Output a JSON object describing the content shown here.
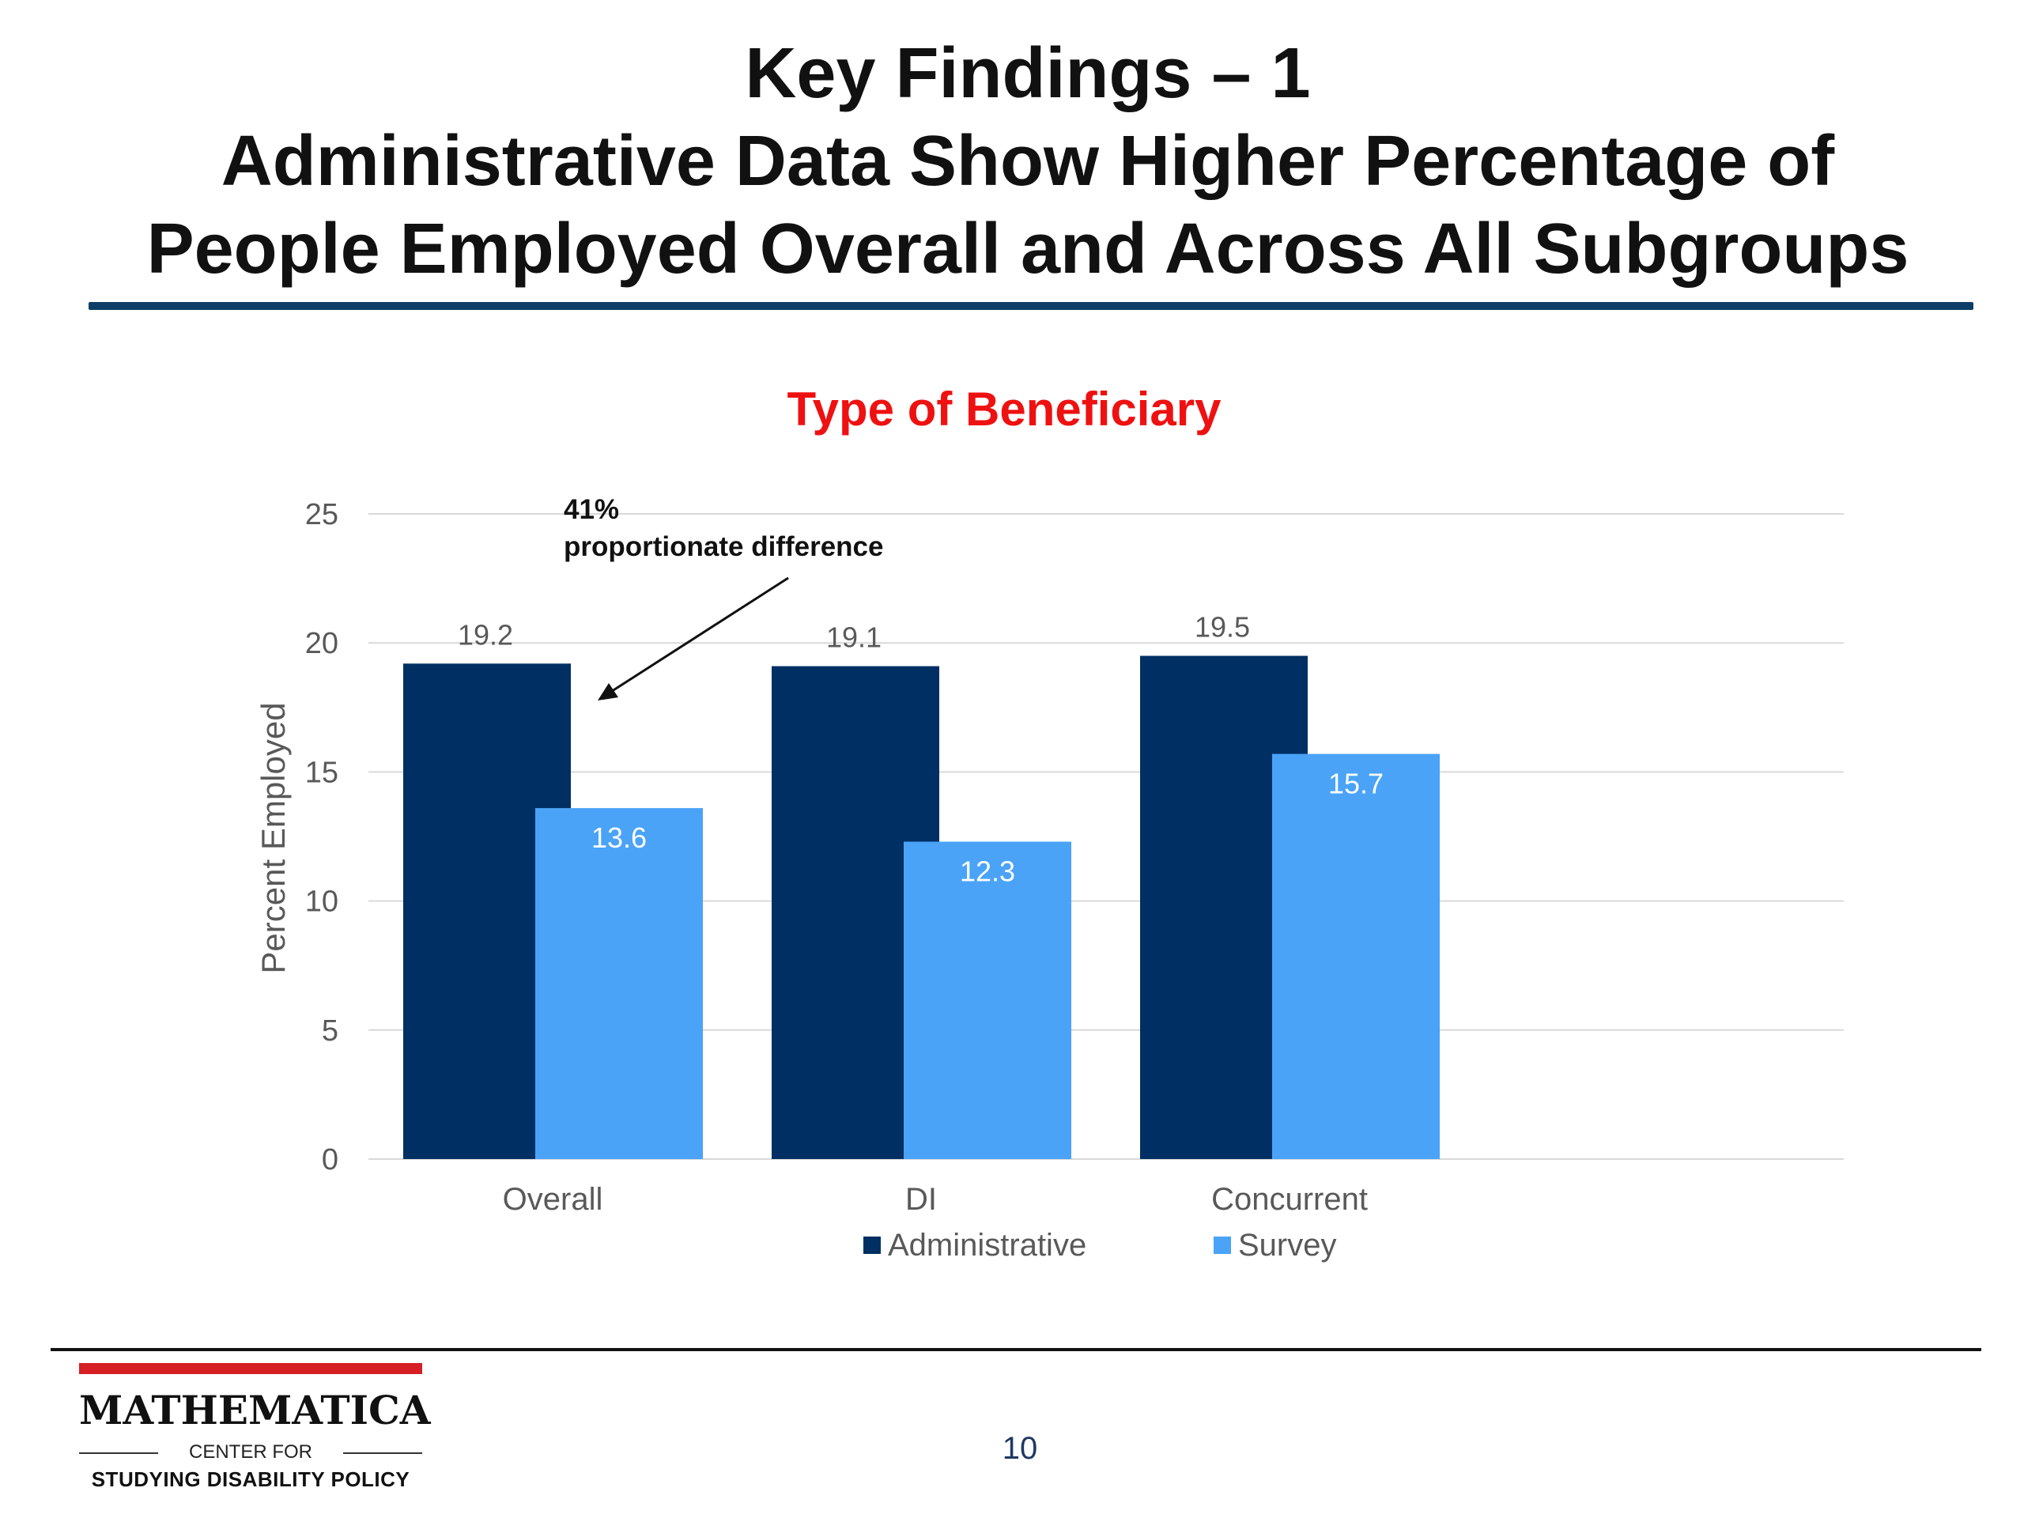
{
  "slide": {
    "title_lines": [
      "Key Findings – 1",
      "Administrative Data Show Higher Percentage of",
      "People Employed Overall and Across All Subgroups"
    ],
    "page_number": "10"
  },
  "logo": {
    "name": "MATHEMATICA",
    "line2": "CENTER FOR",
    "line3": "STUDYING DISABILITY POLICY"
  },
  "chart_data": {
    "type": "bar",
    "title": "Type of Beneficiary",
    "ylabel": "Percent Employed",
    "xlabel": "",
    "ylim": [
      0,
      25
    ],
    "yticks": [
      0,
      5,
      10,
      15,
      20,
      25
    ],
    "grid": true,
    "legend_position": "bottom",
    "categories": [
      "Overall",
      "DI",
      "Concurrent"
    ],
    "series": [
      {
        "name": "Administrative",
        "values": [
          19.2,
          19.1,
          19.5
        ],
        "color": "#002f63"
      },
      {
        "name": "Survey",
        "values": [
          13.6,
          12.3,
          15.7
        ],
        "color": "#4aa3f7"
      }
    ],
    "annotation": {
      "line1": "41%",
      "line2": "proportionate difference"
    },
    "colors": {
      "title": "#ee1111",
      "axis_text": "#595959",
      "grid": "#d9d9d9"
    }
  }
}
